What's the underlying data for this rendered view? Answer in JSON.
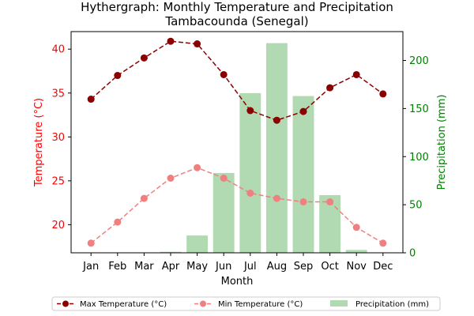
{
  "chart_data": {
    "type": "line+bar",
    "title_line1": "Hythergraph: Monthly Temperature and Precipitation",
    "title_line2": "Tambacounda (Senegal)",
    "xlabel": "Month",
    "ylabel_left": "Temperature (°C)",
    "ylabel_right": "Precipitation (mm)",
    "categories": [
      "Jan",
      "Feb",
      "Mar",
      "Apr",
      "May",
      "Jun",
      "Jul",
      "Aug",
      "Sep",
      "Oct",
      "Nov",
      "Dec"
    ],
    "left_axis": {
      "ylim": [
        16.8,
        42.0
      ],
      "ticks": [
        20,
        25,
        30,
        35,
        40
      ],
      "color": "#ff0000"
    },
    "right_axis": {
      "ylim": [
        0,
        230
      ],
      "ticks": [
        0,
        50,
        100,
        150,
        200
      ],
      "color": "#008000"
    },
    "series": [
      {
        "name": "Max Temperature (°C)",
        "kind": "line",
        "axis": "left",
        "color": "#8b0000",
        "linestyle": "dashed",
        "values": [
          34.3,
          37.0,
          39.0,
          40.9,
          40.6,
          37.1,
          33.0,
          31.9,
          32.9,
          35.6,
          37.1,
          34.9
        ]
      },
      {
        "name": "Min Temperature (°C)",
        "kind": "line",
        "axis": "left",
        "color": "#f08080",
        "linestyle": "dashed",
        "values": [
          17.9,
          20.3,
          23.0,
          25.3,
          26.5,
          25.3,
          23.6,
          23.0,
          22.6,
          22.6,
          19.7,
          17.9
        ]
      },
      {
        "name": "Precipitation (mm)",
        "kind": "bar",
        "axis": "right",
        "color": "#b2dab2",
        "values": [
          0,
          0,
          0,
          1,
          18,
          83,
          166,
          218,
          163,
          60,
          3,
          0
        ]
      }
    ],
    "legend_position": "bottom"
  }
}
